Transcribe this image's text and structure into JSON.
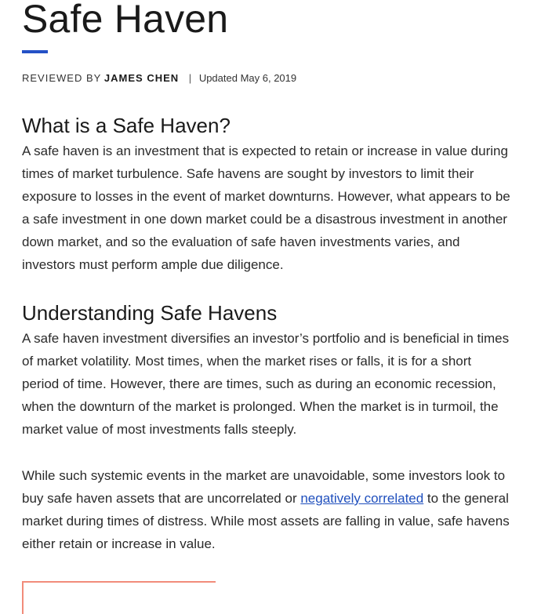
{
  "article": {
    "title": "Safe Haven",
    "byline": {
      "reviewed_prefix": "REVIEWED BY",
      "author": "JAMES CHEN",
      "separator": "|",
      "updated": "Updated May 6, 2019"
    },
    "sections": [
      {
        "heading": "What is a Safe Haven?",
        "lines": [
          "A safe haven is an investment that is expected to retain or increase in value during",
          "times of market turbulence. Safe havens are sought by investors to limit their",
          "exposure to losses in the event of market downturns. However, what appears to be",
          "a safe investment in one down market could be a disastrous investment in another",
          "down market, and so the evaluation of safe haven investments varies, and",
          "investors must perform ample due diligence."
        ]
      },
      {
        "heading": "Understanding Safe Havens",
        "lines": [
          "A safe haven investment diversifies an investor’s portfolio and is beneficial in times",
          "of market volatility. Most times, when the market rises or falls, it is for a short",
          "period of time. However, there are times, such as during an economic recession,",
          "when the downturn of the market is prolonged. When the market is in turmoil, the",
          "market value of most investments falls steeply."
        ]
      }
    ],
    "paragraph3": {
      "line1": "While such systemic events in the market are unavoidable, some investors look to",
      "line2_before": "buy safe haven assets that are uncorrelated or ",
      "line2_link": "negatively correlated",
      "line2_after": " to the general",
      "line3": "market during times of distress. While most assets are falling in value, safe havens",
      "line4": "either retain or increase in value."
    }
  }
}
